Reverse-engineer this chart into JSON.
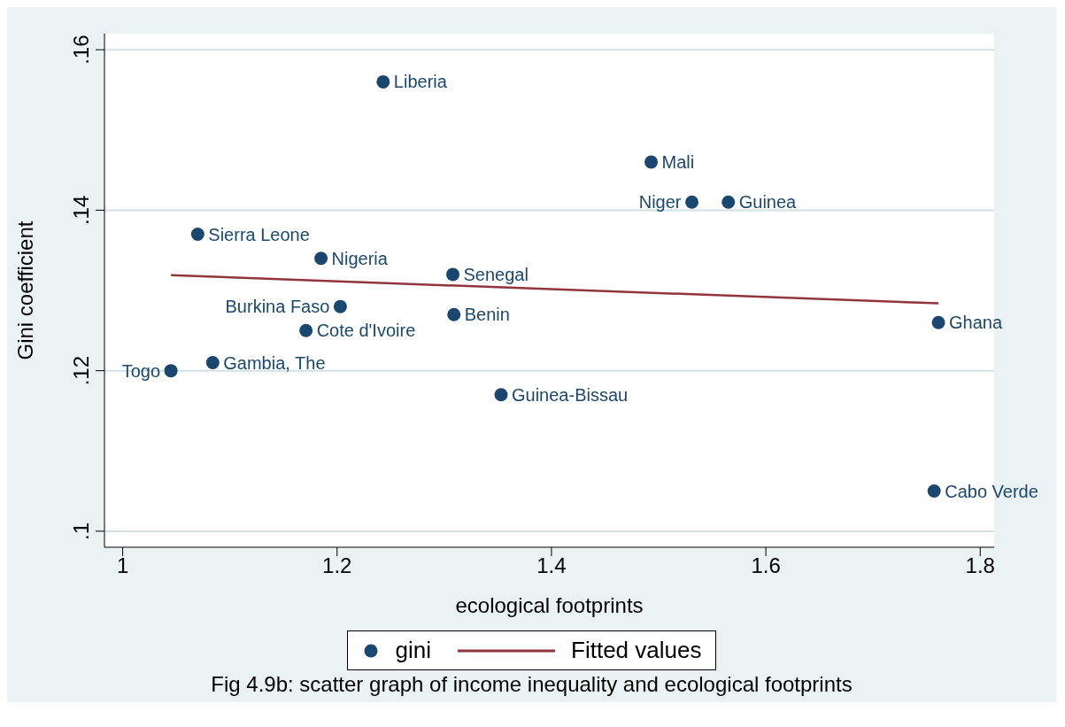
{
  "chart_data": {
    "type": "scatter",
    "xlabel": "ecological footprints",
    "ylabel": "Gini coefficient",
    "xlim": [
      0.983,
      1.813
    ],
    "ylim": [
      0.098,
      0.162
    ],
    "xticks": [
      1,
      1.2,
      1.4,
      1.6,
      1.8
    ],
    "yticks": [
      {
        "value": 0.1,
        "label": ".1"
      },
      {
        "value": 0.12,
        "label": ".12"
      },
      {
        "value": 0.14,
        "label": ".14"
      },
      {
        "value": 0.16,
        "label": ".16"
      }
    ],
    "grid": "y",
    "legend": "bottom",
    "marker": "circle",
    "series": [
      {
        "name": "gini",
        "color": "#1a476f",
        "x": [
          1.243,
          1.493,
          1.531,
          1.565,
          1.07,
          1.185,
          1.308,
          1.203,
          1.309,
          1.171,
          1.761,
          1.045,
          1.084,
          1.353,
          1.757
        ],
        "values": [
          0.156,
          0.146,
          0.141,
          0.141,
          0.137,
          0.134,
          0.132,
          0.128,
          0.127,
          0.125,
          0.126,
          0.12,
          0.121,
          0.117,
          0.105
        ]
      },
      {
        "name": "Fitted values",
        "type": "line",
        "color": "#90353b",
        "marker": "none",
        "x": [
          1.045,
          1.761
        ],
        "values": [
          0.1319,
          0.1284
        ]
      }
    ],
    "annotations": [
      {
        "text": "Liberia",
        "x": 1.243,
        "y": 0.156
      },
      {
        "text": "Mali",
        "x": 1.493,
        "y": 0.146
      },
      {
        "text": "Niger",
        "x": 1.531,
        "y": 0.141
      },
      {
        "text": "Guinea",
        "x": 1.565,
        "y": 0.141
      },
      {
        "text": "Sierra Leone",
        "x": 1.07,
        "y": 0.137
      },
      {
        "text": "Nigeria",
        "x": 1.185,
        "y": 0.134
      },
      {
        "text": "Senegal",
        "x": 1.308,
        "y": 0.132
      },
      {
        "text": "Burkina Faso",
        "x": 1.203,
        "y": 0.128
      },
      {
        "text": "Benin",
        "x": 1.309,
        "y": 0.127
      },
      {
        "text": "Cote d'Ivoire",
        "x": 1.171,
        "y": 0.125
      },
      {
        "text": "Ghana",
        "x": 1.761,
        "y": 0.126
      },
      {
        "text": "Togo",
        "x": 1.045,
        "y": 0.12
      },
      {
        "text": "Gambia, The",
        "x": 1.084,
        "y": 0.121
      },
      {
        "text": "Guinea-Bissau",
        "x": 1.353,
        "y": 0.117
      },
      {
        "text": "Cabo Verde",
        "x": 1.757,
        "y": 0.105
      },
      "Fig 4.9b: scatter graph of income inequality and ecological footprints"
    ]
  }
}
